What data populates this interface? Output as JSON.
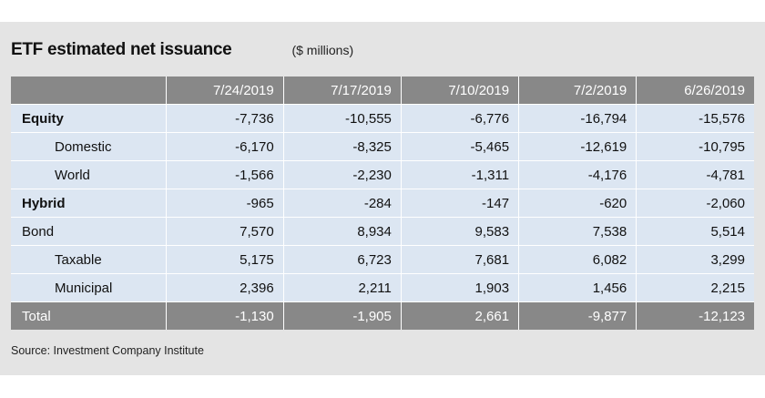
{
  "header": {
    "title": "ETF estimated net issuance",
    "units": "($ millions)"
  },
  "table": {
    "columns": [
      "7/24/2019",
      "7/17/2019",
      "7/10/2019",
      "7/2/2019",
      "6/26/2019"
    ],
    "rows": [
      {
        "label": "Equity",
        "values": [
          "-7,736",
          "-10,555",
          "-6,776",
          "-16,794",
          "-15,576"
        ]
      },
      {
        "label": "Domestic",
        "values": [
          "-6,170",
          "-8,325",
          "-5,465",
          "-12,619",
          "-10,795"
        ]
      },
      {
        "label": "World",
        "values": [
          "-1,566",
          "-2,230",
          "-1,311",
          "-4,176",
          "-4,781"
        ]
      },
      {
        "label": "Hybrid",
        "values": [
          "-965",
          "-284",
          "-147",
          "-620",
          "-2,060"
        ]
      },
      {
        "label": "Bond",
        "values": [
          "7,570",
          "8,934",
          "9,583",
          "7,538",
          "5,514"
        ]
      },
      {
        "label": "Taxable",
        "values": [
          "5,175",
          "6,723",
          "7,681",
          "6,082",
          "3,299"
        ]
      },
      {
        "label": "Municipal",
        "values": [
          "2,396",
          "2,211",
          "1,903",
          "1,456",
          "2,215"
        ]
      }
    ],
    "total": {
      "label": "Total",
      "values": [
        "-1,130",
        "-1,905",
        "2,661",
        "-9,877",
        "-12,123"
      ]
    }
  },
  "footer": {
    "source": "Source: Investment Company Institute"
  },
  "colors": {
    "header_bg": "#888888",
    "row_bg": "#dce6f2",
    "panel_bg": "#e4e4e4"
  }
}
